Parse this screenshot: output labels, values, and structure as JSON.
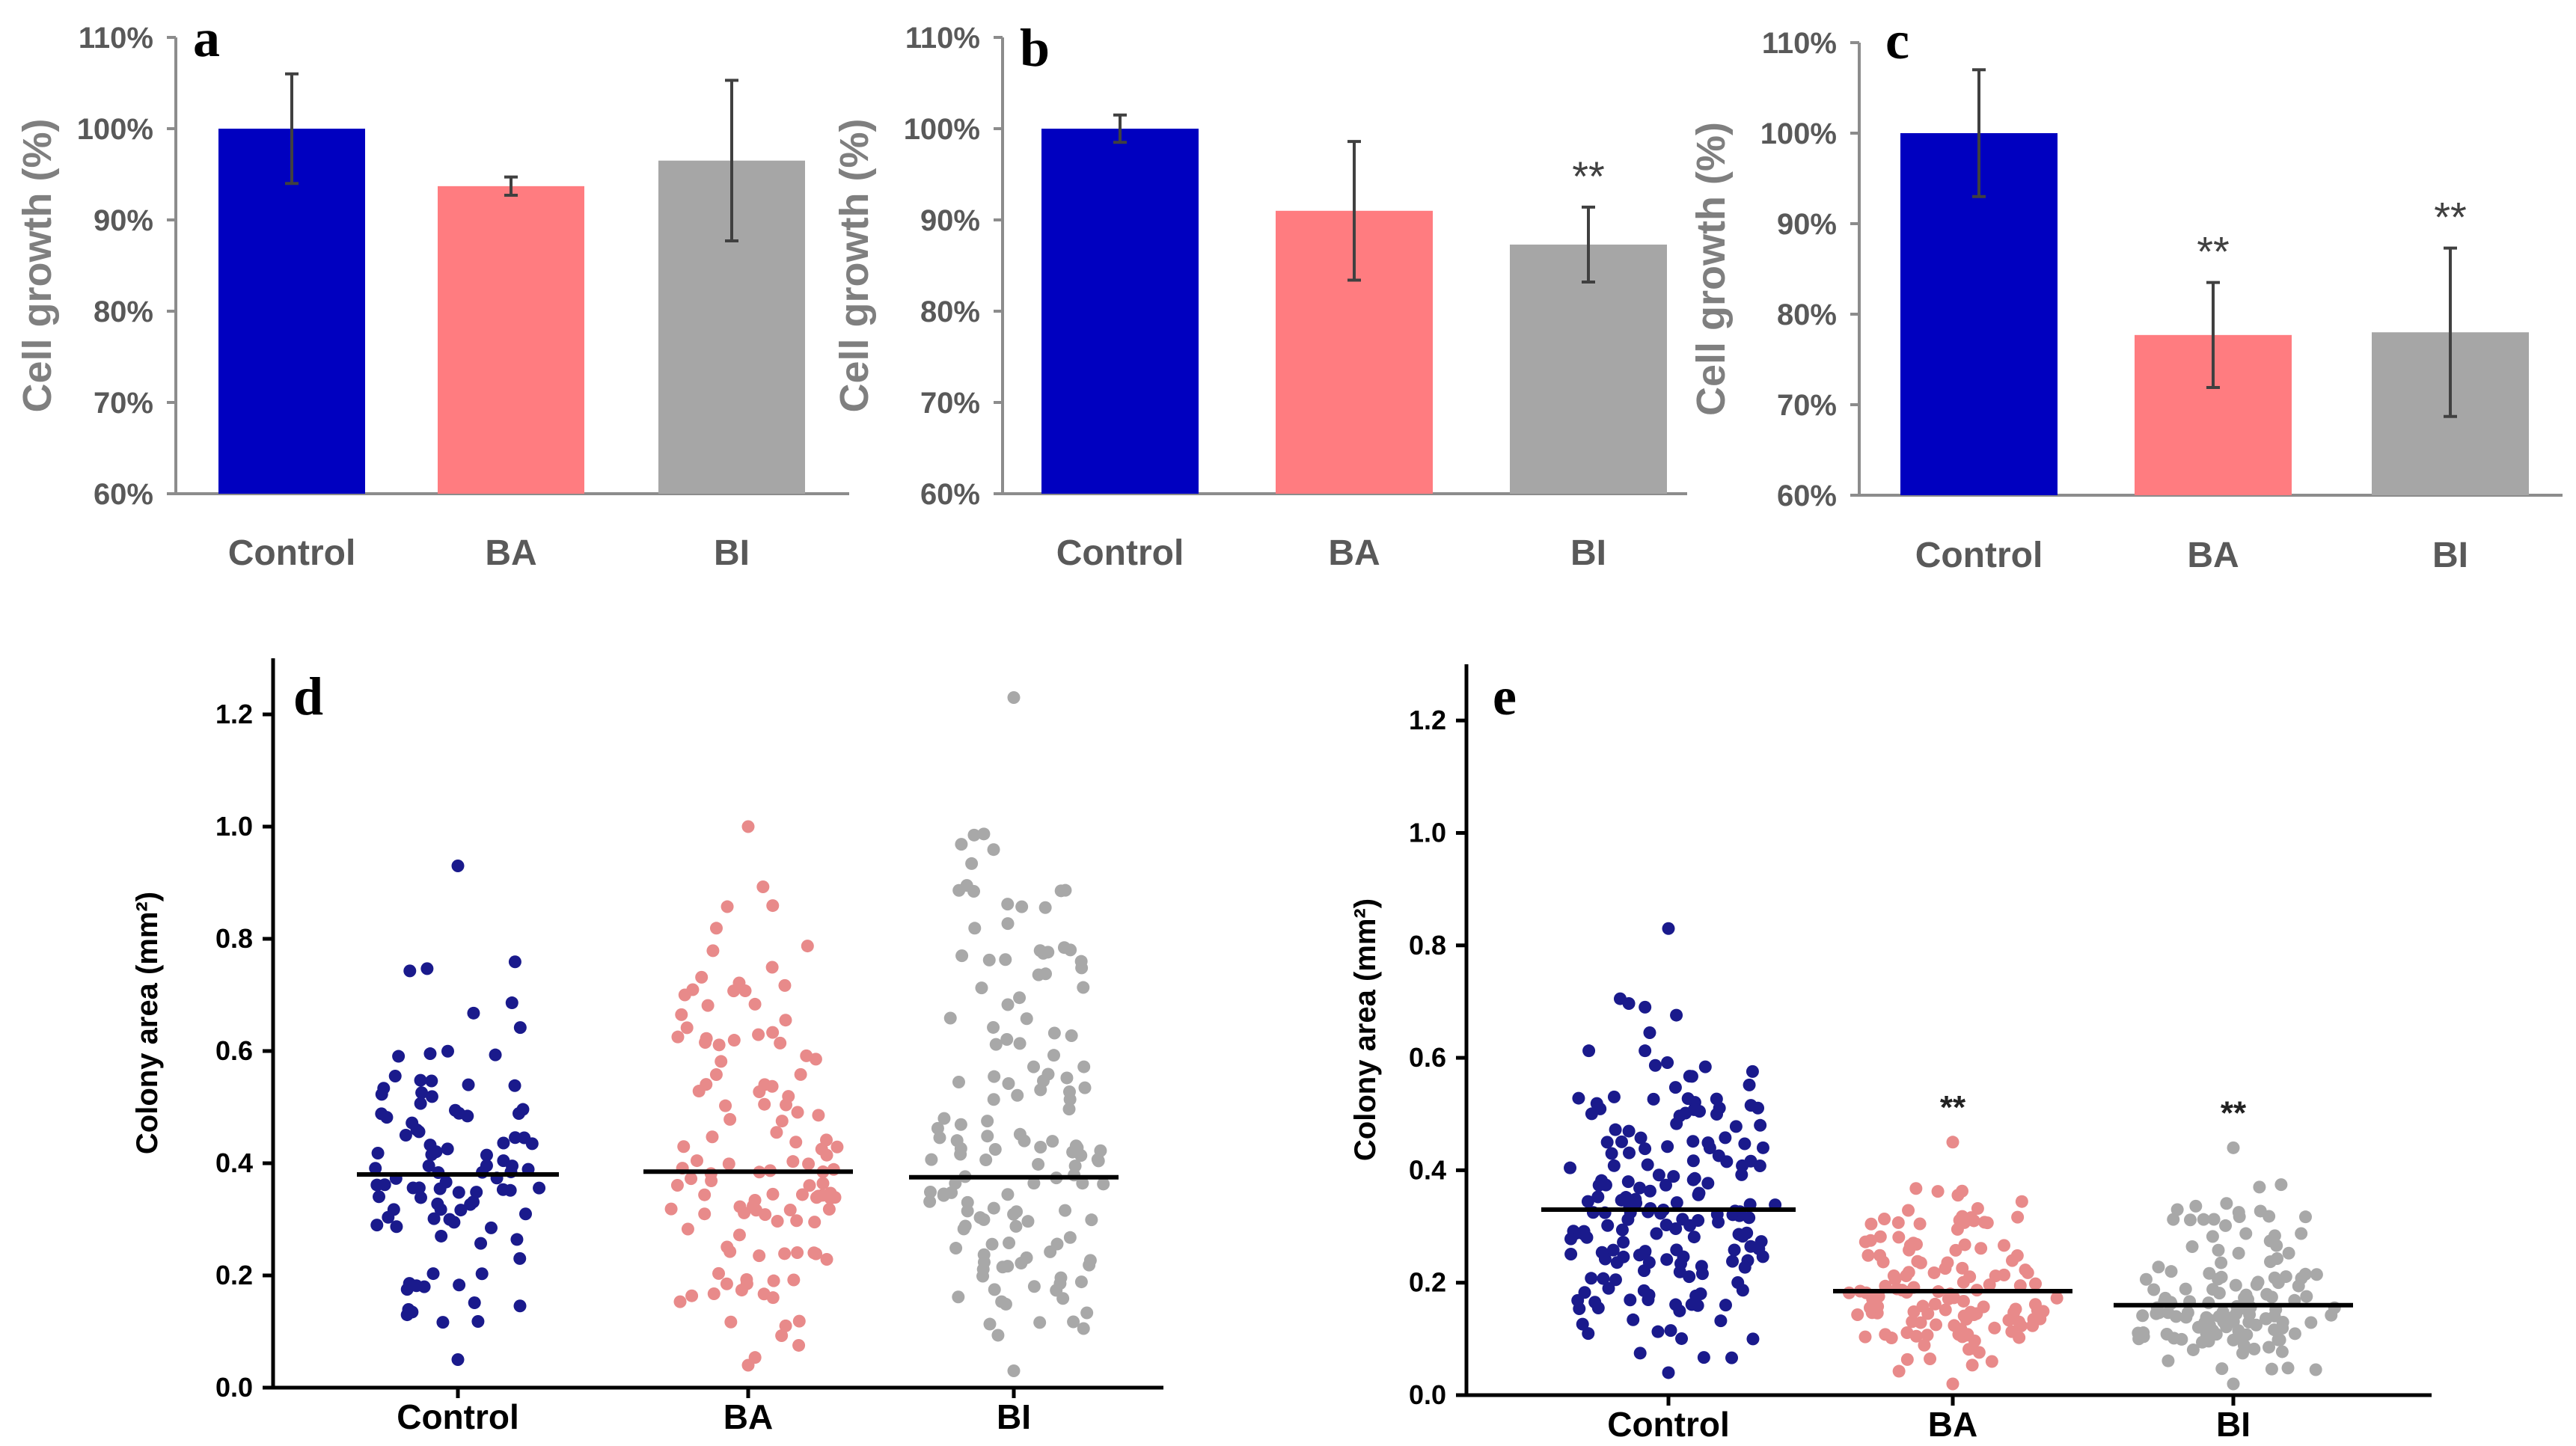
{
  "chart_data": [
    {
      "panel": "a",
      "type": "bar",
      "ylabel": "Cell growth (%)",
      "ylim": [
        60,
        110
      ],
      "yticks": [
        "60%",
        "70%",
        "80%",
        "90%",
        "100%",
        "110%"
      ],
      "categories": [
        "Control",
        "BA",
        "BI"
      ],
      "values": [
        100,
        93.7,
        96.5
      ],
      "errors": [
        6.0,
        1.0,
        8.8
      ],
      "colors": [
        "#0000c0",
        "#ff7c80",
        "#a6a6a6"
      ],
      "annotations": [
        "",
        "",
        ""
      ]
    },
    {
      "panel": "b",
      "type": "bar",
      "ylabel": "Cell growth (%)",
      "ylim": [
        60,
        110
      ],
      "yticks": [
        "60%",
        "70%",
        "80%",
        "90%",
        "100%",
        "110%"
      ],
      "categories": [
        "Control",
        "BA",
        "BI"
      ],
      "values": [
        100,
        91.0,
        87.3
      ],
      "errors": [
        1.5,
        7.6,
        4.1
      ],
      "colors": [
        "#0000c0",
        "#ff7c80",
        "#a6a6a6"
      ],
      "annotations": [
        "",
        "",
        "**"
      ]
    },
    {
      "panel": "c",
      "type": "bar",
      "ylabel": "Cell growth (%)",
      "ylim": [
        60,
        110
      ],
      "yticks": [
        "60%",
        "70%",
        "80%",
        "90%",
        "100%",
        "110%"
      ],
      "categories": [
        "Control",
        "BA",
        "BI"
      ],
      "values": [
        100,
        77.7,
        78.0
      ],
      "errors": [
        7.0,
        5.8,
        9.3
      ],
      "colors": [
        "#0000c0",
        "#ff7c80",
        "#a6a6a6"
      ],
      "annotations": [
        "",
        "**",
        "**"
      ]
    },
    {
      "panel": "d",
      "type": "scatter",
      "ylabel": "Colony area (mm²)",
      "ylim": [
        0.0,
        1.3
      ],
      "yticks": [
        "0.0",
        "0.2",
        "0.4",
        "0.6",
        "0.8",
        "1.0",
        "1.2"
      ],
      "categories": [
        "Control",
        "BA",
        "BI"
      ],
      "medians": [
        0.38,
        0.385,
        0.375
      ],
      "counts": [
        100,
        120,
        140
      ],
      "min": [
        0.05,
        0.04,
        0.03
      ],
      "max": [
        0.93,
        1.0,
        1.23
      ],
      "colors": [
        "#1a1a8c",
        "#e88a8a",
        "#a8a8a8"
      ],
      "annotations": [
        "",
        "",
        ""
      ]
    },
    {
      "panel": "e",
      "type": "scatter",
      "ylabel": "Colony area (mm²)",
      "ylim": [
        0.0,
        1.3
      ],
      "yticks": [
        "0.0",
        "0.2",
        "0.4",
        "0.6",
        "0.8",
        "1.0",
        "1.2"
      ],
      "categories": [
        "Control",
        "BA",
        "BI"
      ],
      "medians": [
        0.33,
        0.185,
        0.16
      ],
      "counts": [
        180,
        130,
        130
      ],
      "min": [
        0.04,
        0.02,
        0.02
      ],
      "max": [
        0.83,
        0.45,
        0.44
      ],
      "colors": [
        "#1a1a8c",
        "#e88a8a",
        "#a8a8a8"
      ],
      "annotations": [
        "",
        "**",
        "**"
      ]
    }
  ]
}
